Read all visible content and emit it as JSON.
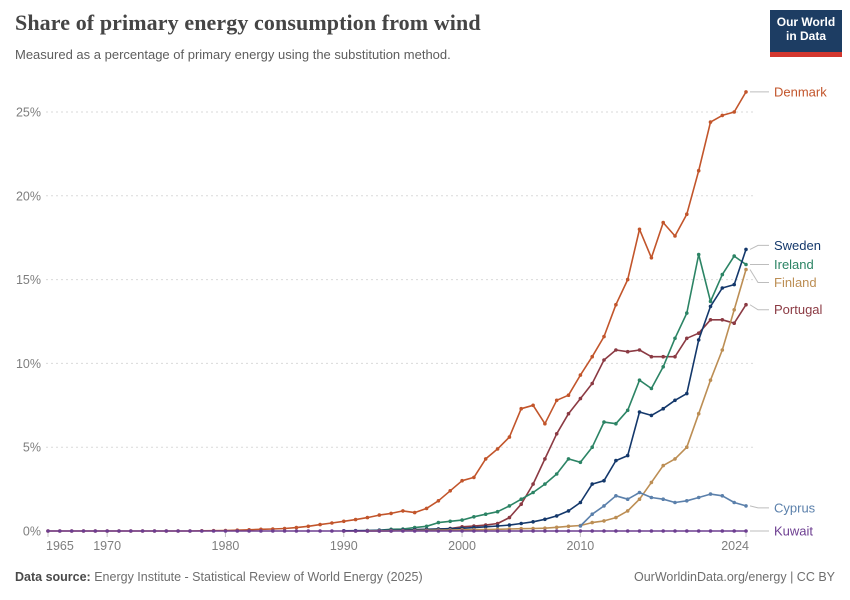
{
  "header": {
    "title": "Share of primary energy consumption from wind",
    "subtitle": "Measured as a percentage of primary energy using the substitution method.",
    "logo_line1": "Our World",
    "logo_line2": "in Data",
    "logo_bg_color": "#1d3d63",
    "logo_accent_color": "#d3372e"
  },
  "footer": {
    "source_label": "Data source:",
    "source_text": "Energy Institute - Statistical Review of World Energy (2025)",
    "right_text": "OurWorldinData.org/energy | CC BY"
  },
  "chart_data": {
    "type": "line",
    "title": "Share of primary energy consumption from wind",
    "xlabel": "",
    "ylabel": "",
    "grid": "dashed-horizontal",
    "legend_position": "right-end-labels",
    "x_axis": {
      "range": [
        1965,
        2024
      ],
      "ticks": [
        1965,
        1970,
        1980,
        1990,
        2000,
        2010,
        2024
      ]
    },
    "y_axis": {
      "range": [
        0,
        26.5
      ],
      "ticks": [
        0,
        5,
        10,
        15,
        20,
        25
      ],
      "suffix": "%"
    },
    "series": [
      {
        "name": "Denmark",
        "color": "#c2552b",
        "label_dy": 0,
        "zeros_from": 1965,
        "points": [
          [
            1978,
            0.01
          ],
          [
            1979,
            0.02
          ],
          [
            1980,
            0.03
          ],
          [
            1981,
            0.05
          ],
          [
            1982,
            0.07
          ],
          [
            1983,
            0.1
          ],
          [
            1984,
            0.12
          ],
          [
            1985,
            0.15
          ],
          [
            1986,
            0.2
          ],
          [
            1987,
            0.28
          ],
          [
            1988,
            0.38
          ],
          [
            1989,
            0.48
          ],
          [
            1990,
            0.58
          ],
          [
            1991,
            0.68
          ],
          [
            1992,
            0.8
          ],
          [
            1993,
            0.95
          ],
          [
            1994,
            1.05
          ],
          [
            1995,
            1.2
          ],
          [
            1996,
            1.1
          ],
          [
            1997,
            1.35
          ],
          [
            1998,
            1.8
          ],
          [
            1999,
            2.4
          ],
          [
            2000,
            3.0
          ],
          [
            2001,
            3.2
          ],
          [
            2002,
            4.3
          ],
          [
            2003,
            4.9
          ],
          [
            2004,
            5.6
          ],
          [
            2005,
            7.3
          ],
          [
            2006,
            7.5
          ],
          [
            2007,
            6.4
          ],
          [
            2008,
            7.8
          ],
          [
            2009,
            8.1
          ],
          [
            2010,
            9.3
          ],
          [
            2011,
            10.4
          ],
          [
            2012,
            11.6
          ],
          [
            2013,
            13.5
          ],
          [
            2014,
            15.0
          ],
          [
            2015,
            18.0
          ],
          [
            2016,
            16.3
          ],
          [
            2017,
            18.4
          ],
          [
            2018,
            17.6
          ],
          [
            2019,
            18.9
          ],
          [
            2020,
            21.5
          ],
          [
            2021,
            24.4
          ],
          [
            2022,
            24.8
          ],
          [
            2023,
            25.0
          ],
          [
            2024,
            26.2
          ]
        ]
      },
      {
        "name": "Portugal",
        "color": "#8b3a43",
        "label_dy": 5,
        "zeros_from": 1990,
        "points": [
          [
            1995,
            0.05
          ],
          [
            1996,
            0.08
          ],
          [
            1997,
            0.1
          ],
          [
            1998,
            0.12
          ],
          [
            1999,
            0.15
          ],
          [
            2000,
            0.25
          ],
          [
            2001,
            0.3
          ],
          [
            2002,
            0.35
          ],
          [
            2003,
            0.45
          ],
          [
            2004,
            0.8
          ],
          [
            2005,
            1.6
          ],
          [
            2006,
            2.8
          ],
          [
            2007,
            4.3
          ],
          [
            2008,
            5.8
          ],
          [
            2009,
            7.0
          ],
          [
            2010,
            7.9
          ],
          [
            2011,
            8.8
          ],
          [
            2012,
            10.2
          ],
          [
            2013,
            10.8
          ],
          [
            2014,
            10.7
          ],
          [
            2015,
            10.8
          ],
          [
            2016,
            10.4
          ],
          [
            2017,
            10.4
          ],
          [
            2018,
            10.4
          ],
          [
            2019,
            11.5
          ],
          [
            2020,
            11.8
          ],
          [
            2021,
            12.6
          ],
          [
            2022,
            12.6
          ],
          [
            2023,
            12.4
          ],
          [
            2024,
            13.5
          ]
        ]
      },
      {
        "name": "Ireland",
        "color": "#2c8465",
        "label_dy": 0,
        "zeros_from": 1992,
        "points": [
          [
            1992,
            0.02
          ],
          [
            1993,
            0.05
          ],
          [
            1994,
            0.1
          ],
          [
            1995,
            0.12
          ],
          [
            1996,
            0.2
          ],
          [
            1997,
            0.28
          ],
          [
            1998,
            0.5
          ],
          [
            1999,
            0.58
          ],
          [
            2000,
            0.65
          ],
          [
            2001,
            0.85
          ],
          [
            2002,
            1.0
          ],
          [
            2003,
            1.15
          ],
          [
            2004,
            1.5
          ],
          [
            2005,
            1.9
          ],
          [
            2006,
            2.3
          ],
          [
            2007,
            2.8
          ],
          [
            2008,
            3.4
          ],
          [
            2009,
            4.3
          ],
          [
            2010,
            4.1
          ],
          [
            2011,
            5.0
          ],
          [
            2012,
            6.5
          ],
          [
            2013,
            6.4
          ],
          [
            2014,
            7.2
          ],
          [
            2015,
            9.0
          ],
          [
            2016,
            8.5
          ],
          [
            2017,
            9.8
          ],
          [
            2018,
            11.5
          ],
          [
            2019,
            13.0
          ],
          [
            2020,
            16.5
          ],
          [
            2021,
            13.7
          ],
          [
            2022,
            15.3
          ],
          [
            2023,
            16.4
          ],
          [
            2024,
            15.9
          ]
        ]
      },
      {
        "name": "Sweden",
        "color": "#14386b",
        "label_dy": -4,
        "zeros_from": 1990,
        "points": [
          [
            1990,
            0.01
          ],
          [
            1991,
            0.02
          ],
          [
            1992,
            0.03
          ],
          [
            1993,
            0.04
          ],
          [
            1994,
            0.05
          ],
          [
            1995,
            0.06
          ],
          [
            1996,
            0.08
          ],
          [
            1997,
            0.1
          ],
          [
            1998,
            0.12
          ],
          [
            1999,
            0.14
          ],
          [
            2000,
            0.16
          ],
          [
            2001,
            0.2
          ],
          [
            2002,
            0.25
          ],
          [
            2003,
            0.3
          ],
          [
            2004,
            0.35
          ],
          [
            2005,
            0.45
          ],
          [
            2006,
            0.55
          ],
          [
            2007,
            0.7
          ],
          [
            2008,
            0.9
          ],
          [
            2009,
            1.2
          ],
          [
            2010,
            1.7
          ],
          [
            2011,
            2.8
          ],
          [
            2012,
            3.0
          ],
          [
            2013,
            4.2
          ],
          [
            2014,
            4.5
          ],
          [
            2015,
            7.1
          ],
          [
            2016,
            6.9
          ],
          [
            2017,
            7.3
          ],
          [
            2018,
            7.8
          ],
          [
            2019,
            8.2
          ],
          [
            2020,
            11.4
          ],
          [
            2021,
            13.4
          ],
          [
            2022,
            14.5
          ],
          [
            2023,
            14.7
          ],
          [
            2024,
            16.8
          ]
        ]
      },
      {
        "name": "Finland",
        "color": "#bc8e54",
        "label_dy": 13,
        "zeros_from": 1992,
        "points": [
          [
            1992,
            0.01
          ],
          [
            1993,
            0.01
          ],
          [
            1994,
            0.02
          ],
          [
            1995,
            0.02
          ],
          [
            1996,
            0.03
          ],
          [
            1997,
            0.04
          ],
          [
            1998,
            0.05
          ],
          [
            1999,
            0.06
          ],
          [
            2000,
            0.07
          ],
          [
            2001,
            0.08
          ],
          [
            2002,
            0.09
          ],
          [
            2003,
            0.1
          ],
          [
            2004,
            0.12
          ],
          [
            2005,
            0.14
          ],
          [
            2006,
            0.15
          ],
          [
            2007,
            0.17
          ],
          [
            2008,
            0.22
          ],
          [
            2009,
            0.28
          ],
          [
            2010,
            0.33
          ],
          [
            2011,
            0.5
          ],
          [
            2012,
            0.6
          ],
          [
            2013,
            0.8
          ],
          [
            2014,
            1.2
          ],
          [
            2015,
            1.9
          ],
          [
            2016,
            2.9
          ],
          [
            2017,
            3.9
          ],
          [
            2018,
            4.3
          ],
          [
            2019,
            5.0
          ],
          [
            2020,
            7.0
          ],
          [
            2021,
            9.0
          ],
          [
            2022,
            10.8
          ],
          [
            2023,
            13.2
          ],
          [
            2024,
            15.6
          ]
        ]
      },
      {
        "name": "Cyprus",
        "color": "#5b80ab",
        "label_dy": 2,
        "zeros_from": null,
        "points": [
          [
            2010,
            0.3
          ],
          [
            2011,
            1.0
          ],
          [
            2012,
            1.5
          ],
          [
            2013,
            2.1
          ],
          [
            2014,
            1.9
          ],
          [
            2015,
            2.3
          ],
          [
            2016,
            2.0
          ],
          [
            2017,
            1.9
          ],
          [
            2018,
            1.7
          ],
          [
            2019,
            1.8
          ],
          [
            2020,
            2.0
          ],
          [
            2021,
            2.2
          ],
          [
            2022,
            2.1
          ],
          [
            2023,
            1.7
          ],
          [
            2024,
            1.5
          ]
        ]
      },
      {
        "name": "Kuwait",
        "color": "#6d3e91",
        "label_dy": 0,
        "constant": 0,
        "from": 1965,
        "to": 2024,
        "points": []
      }
    ]
  }
}
